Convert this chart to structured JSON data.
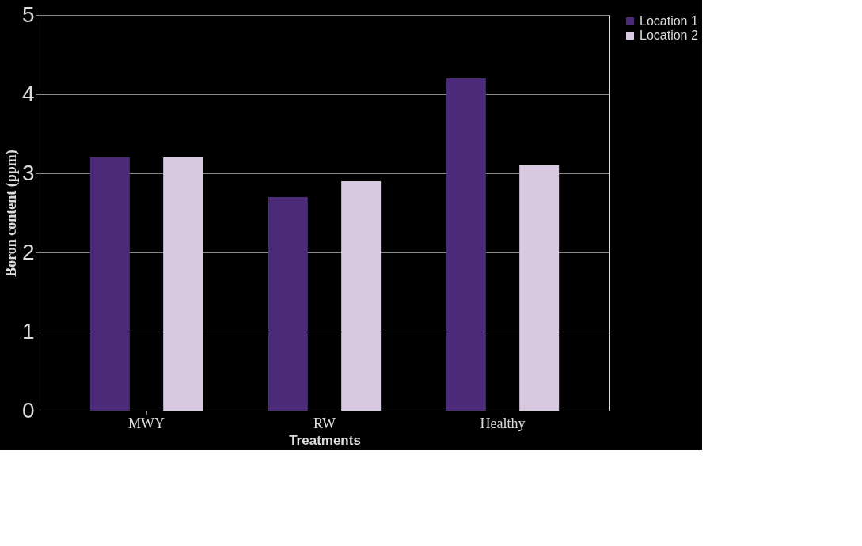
{
  "chart_data": {
    "type": "bar",
    "xlabel": "Treatments",
    "ylabel": "Boron content (ppm)",
    "categories": [
      "MWY",
      "RW",
      "Healthy"
    ],
    "series": [
      {
        "name": "Location 1",
        "color": "#4b2a7a",
        "values": [
          3.2,
          2.7,
          4.2
        ]
      },
      {
        "name": "Location 2",
        "color": "#d8c8e0",
        "values": [
          3.2,
          2.9,
          3.1
        ]
      }
    ],
    "ylim": [
      0,
      5
    ],
    "yticks": [
      0,
      1,
      2,
      3,
      4,
      5
    ],
    "grid": "y",
    "legend": "right"
  }
}
